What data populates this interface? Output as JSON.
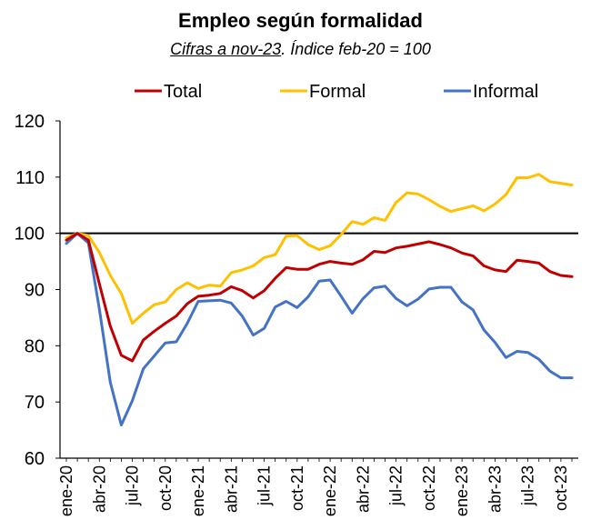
{
  "chart_data": {
    "type": "line",
    "title": "Empleo según formalidad",
    "subtitle_underlined": "Cifras a nov-23",
    "subtitle_rest": ". Índice feb-20 = 100",
    "xlabel": "",
    "ylabel": "",
    "ylim": [
      60,
      120
    ],
    "yticks": [
      60,
      70,
      80,
      90,
      100,
      110,
      120
    ],
    "reference_line": 100,
    "legend_position": "top",
    "x_tick_labels": [
      "ene-20",
      "abr-20",
      "jul-20",
      "oct-20",
      "ene-21",
      "abr-21",
      "jul-21",
      "oct-21",
      "ene-22",
      "abr-22",
      "jul-22",
      "oct-22",
      "ene-23",
      "abr-23",
      "jul-23",
      "oct-23"
    ],
    "x_tick_every": 3,
    "series": [
      {
        "name": "Total",
        "color": "#C00000",
        "values": [
          98.8,
          100.0,
          98.8,
          91.0,
          83.5,
          78.3,
          77.3,
          81.0,
          82.6,
          84.0,
          85.3,
          87.5,
          88.8,
          89.0,
          89.3,
          90.5,
          89.8,
          88.5,
          89.8,
          92.0,
          93.9,
          93.6,
          93.6,
          94.5,
          95.0,
          94.7,
          94.5,
          95.3,
          96.8,
          96.6,
          97.4,
          97.7,
          98.1,
          98.5,
          98.0,
          97.4,
          96.5,
          96.0,
          94.2,
          93.5,
          93.2,
          95.2,
          95.0,
          94.7,
          93.2,
          92.5,
          92.3
        ]
      },
      {
        "name": "Formal",
        "color": "#FFC000",
        "values": [
          99.2,
          100.0,
          99.6,
          96.6,
          92.5,
          89.3,
          84.0,
          85.8,
          87.3,
          87.8,
          90.0,
          91.2,
          90.2,
          90.8,
          90.6,
          93.0,
          93.5,
          94.2,
          95.7,
          96.2,
          99.5,
          99.6,
          98.0,
          97.1,
          97.8,
          99.8,
          102.1,
          101.6,
          102.8,
          102.3,
          105.5,
          107.2,
          107.0,
          106.0,
          104.8,
          103.9,
          104.4,
          104.9,
          104.0,
          105.2,
          106.9,
          109.9,
          109.9,
          110.5,
          109.2,
          108.9,
          108.6
        ]
      },
      {
        "name": "Informal",
        "color": "#4472C4",
        "values": [
          98.2,
          100.0,
          98.3,
          86.5,
          73.5,
          65.9,
          70.2,
          75.9,
          78.2,
          80.5,
          80.7,
          84.0,
          87.9,
          88.0,
          88.1,
          87.6,
          85.3,
          81.9,
          83.1,
          86.9,
          87.9,
          86.8,
          88.7,
          91.5,
          91.7,
          88.8,
          85.8,
          88.4,
          90.3,
          90.6,
          88.4,
          87.1,
          88.3,
          90.1,
          90.4,
          90.4,
          87.8,
          86.4,
          82.8,
          80.6,
          77.9,
          79.0,
          78.8,
          77.6,
          75.5,
          74.3,
          74.3
        ]
      }
    ]
  }
}
